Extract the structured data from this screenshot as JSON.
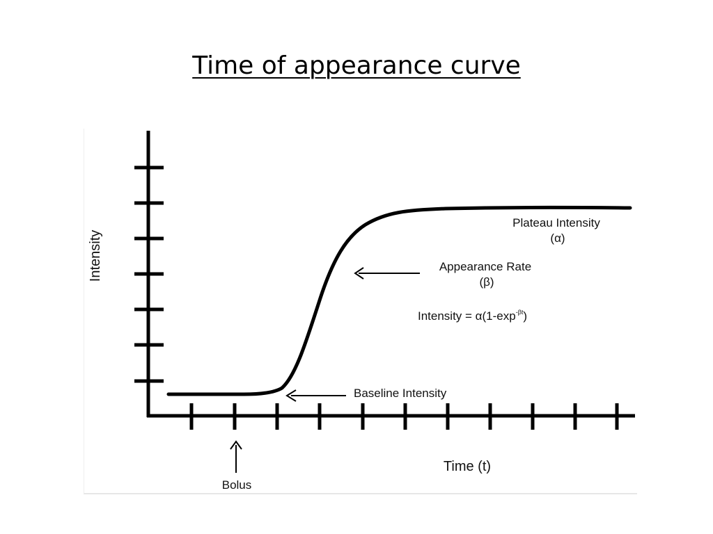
{
  "slide": {
    "title": "Time of appearance curve"
  },
  "figure": {
    "y_axis_label": "Intensity",
    "x_axis_label": "Time (t)",
    "annotations": {
      "plateau_line1": "Plateau Intensity",
      "plateau_line2": "(α)",
      "rate_line1": "Appearance Rate",
      "rate_line2": "(β)",
      "equation_main": "Intensity = α(1-exp",
      "equation_sup": "-βt",
      "equation_close": ")",
      "baseline": "Baseline Intensity",
      "bolus": "Bolus"
    }
  }
}
